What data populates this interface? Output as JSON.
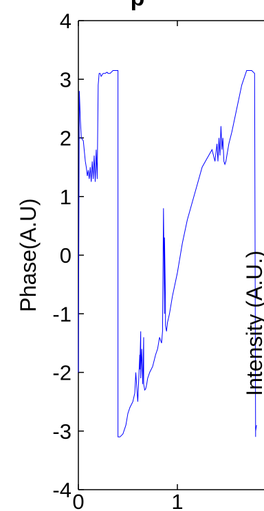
{
  "chart_data": {
    "type": "line",
    "title": "p",
    "ylabel": "Phase(A.U)",
    "overlay_label": "Intensity (A.U.)",
    "xlim": [
      0,
      1.8
    ],
    "ylim": [
      -4,
      4
    ],
    "x_ticks": [
      "0",
      "1"
    ],
    "y_ticks": [
      "4",
      "3",
      "2",
      "1",
      "0",
      "-1",
      "-2",
      "-3",
      "-4"
    ],
    "x_tick_values": [
      0,
      1
    ],
    "y_tick_values": [
      4,
      3,
      2,
      1,
      0,
      -1,
      -2,
      -3,
      -4
    ],
    "grid": false,
    "line_color": "#0000ff",
    "series": [
      {
        "x": [
          0,
          0.01,
          0.02,
          0.03,
          0.05,
          0.07,
          0.08,
          0.09,
          0.1,
          0.11,
          0.12,
          0.13,
          0.14,
          0.15,
          0.16,
          0.17,
          0.18,
          0.19,
          0.2,
          0.21,
          0.22,
          0.23,
          0.25,
          0.27,
          0.29,
          0.3,
          0.32,
          0.35,
          0.38,
          0.4,
          0.4,
          0.42,
          0.45,
          0.48,
          0.5,
          0.52,
          0.55,
          0.57,
          0.58,
          0.6,
          0.62,
          0.62,
          0.63,
          0.63,
          0.64,
          0.65,
          0.66,
          0.66,
          0.67,
          0.68,
          0.69,
          0.7,
          0.72,
          0.75,
          0.78,
          0.8,
          0.82,
          0.84,
          0.85,
          0.86,
          0.87,
          0.87,
          0.88,
          0.88,
          0.89,
          0.9,
          0.92,
          0.95,
          1.0,
          1.05,
          1.1,
          1.15,
          1.2,
          1.25,
          1.3,
          1.35,
          1.38,
          1.4,
          1.41,
          1.42,
          1.43,
          1.44,
          1.45,
          1.46,
          1.47,
          1.48,
          1.49,
          1.5,
          1.52,
          1.55,
          1.6,
          1.65,
          1.7,
          1.75,
          1.78,
          1.79,
          1.79,
          1.8
        ],
        "y": [
          -2.0,
          2.8,
          2.3,
          2.0,
          1.95,
          1.6,
          1.5,
          1.35,
          1.45,
          1.3,
          1.5,
          1.25,
          1.6,
          1.3,
          1.7,
          1.25,
          1.8,
          1.3,
          2.9,
          3.1,
          3.1,
          3.05,
          3.1,
          3.1,
          3.12,
          3.1,
          3.1,
          3.15,
          3.15,
          3.15,
          -3.1,
          -3.1,
          -3.05,
          -2.9,
          -2.7,
          -2.6,
          -2.5,
          -2.35,
          -2.0,
          -2.5,
          -1.7,
          -1.95,
          -1.3,
          -2.1,
          -1.6,
          -2.2,
          -1.4,
          -2.2,
          -2.3,
          -2.28,
          -2.2,
          -2.1,
          -2.0,
          -1.9,
          -1.7,
          -1.6,
          -1.4,
          -1.5,
          -1.3,
          0.8,
          -1.0,
          0.3,
          -0.8,
          -1.2,
          -1.3,
          -1.15,
          -1.0,
          -0.7,
          -0.3,
          0.2,
          0.6,
          0.9,
          1.2,
          1.5,
          1.65,
          1.8,
          1.6,
          1.9,
          1.6,
          2.0,
          1.7,
          2.2,
          1.8,
          2.0,
          1.6,
          1.55,
          1.6,
          1.7,
          1.9,
          2.1,
          2.5,
          2.9,
          3.15,
          3.15,
          3.1,
          -3.1,
          -3.0,
          -2.9
        ]
      }
    ]
  }
}
